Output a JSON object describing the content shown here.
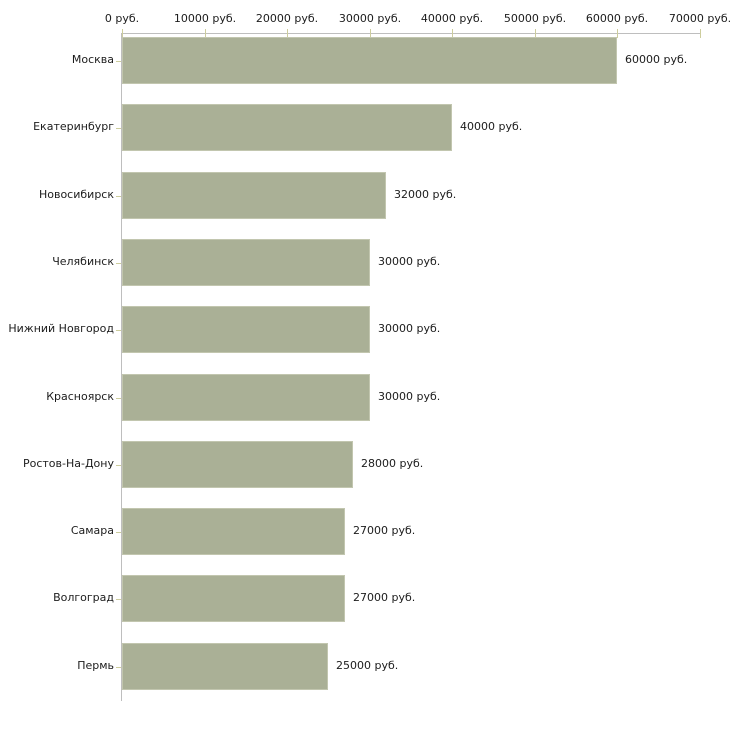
{
  "chart_data": {
    "type": "bar",
    "orientation": "horizontal",
    "title": "",
    "xlabel": "",
    "ylabel": "",
    "unit": "руб.",
    "categories": [
      "Москва",
      "Екатеринбург",
      "Новосибирск",
      "Челябинск",
      "Нижний Новгород",
      "Красноярск",
      "Ростов-На-Дону",
      "Самара",
      "Волгоград",
      "Пермь"
    ],
    "values": [
      60000,
      40000,
      32000,
      30000,
      30000,
      30000,
      28000,
      27000,
      27000,
      25000
    ],
    "value_labels": [
      "60000 руб.",
      "40000 руб.",
      "32000 руб.",
      "30000 руб.",
      "30000 руб.",
      "30000 руб.",
      "28000 руб.",
      "27000 руб.",
      "27000 руб.",
      "25000 руб."
    ],
    "x_tick_values": [
      0,
      10000,
      20000,
      30000,
      40000,
      50000,
      60000,
      70000
    ],
    "x_tick_labels": [
      "0 руб.",
      "10000 руб.",
      "20000 руб.",
      "30000 руб.",
      "40000 руб.",
      "50000 руб.",
      "60000 руб.",
      "70000 руб."
    ],
    "xlim": [
      0,
      70000
    ],
    "grid": false,
    "legend": false,
    "bar_color": "#aab096",
    "axis_color": "#bebebe",
    "tick_color": "#cdcd9d",
    "text_color": "#1c1c1c",
    "background_color": "#ffffff"
  }
}
